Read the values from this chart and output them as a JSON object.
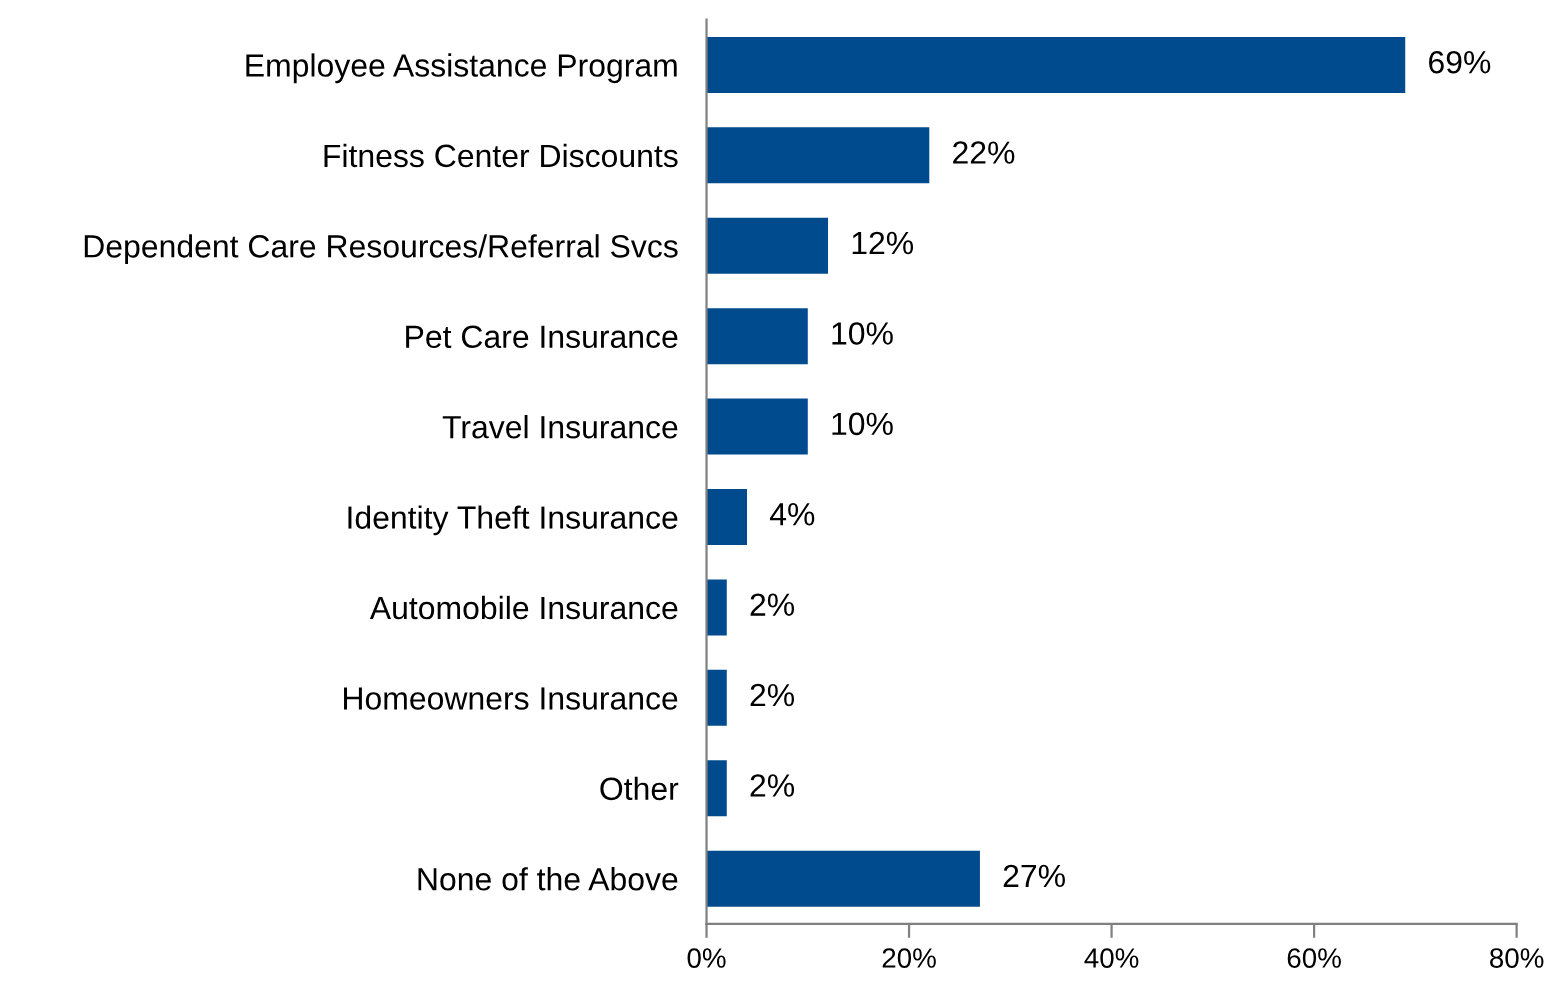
{
  "chart_data": {
    "type": "bar",
    "orientation": "horizontal",
    "categories": [
      "Employee Assistance Program",
      "Fitness Center Discounts",
      "Dependent Care Resources/Referral Svcs",
      "Pet Care Insurance",
      "Travel Insurance",
      "Identity Theft Insurance",
      "Automobile Insurance",
      "Homeowners Insurance",
      "Other",
      "None of the Above"
    ],
    "values": [
      69,
      22,
      12,
      10,
      10,
      4,
      2,
      2,
      2,
      27
    ],
    "value_labels": [
      "69%",
      "22%",
      "12%",
      "10%",
      "10%",
      "4%",
      "2%",
      "2%",
      "2%",
      "27%"
    ],
    "color": "#004b8d",
    "xlim": [
      0,
      80
    ],
    "xticks": [
      {
        "value": 0,
        "label": "0%"
      },
      {
        "value": 20,
        "label": "20%"
      },
      {
        "value": 40,
        "label": "40%"
      },
      {
        "value": 60,
        "label": "60%"
      },
      {
        "value": 80,
        "label": "80%"
      }
    ],
    "grid": false,
    "legend": false
  }
}
